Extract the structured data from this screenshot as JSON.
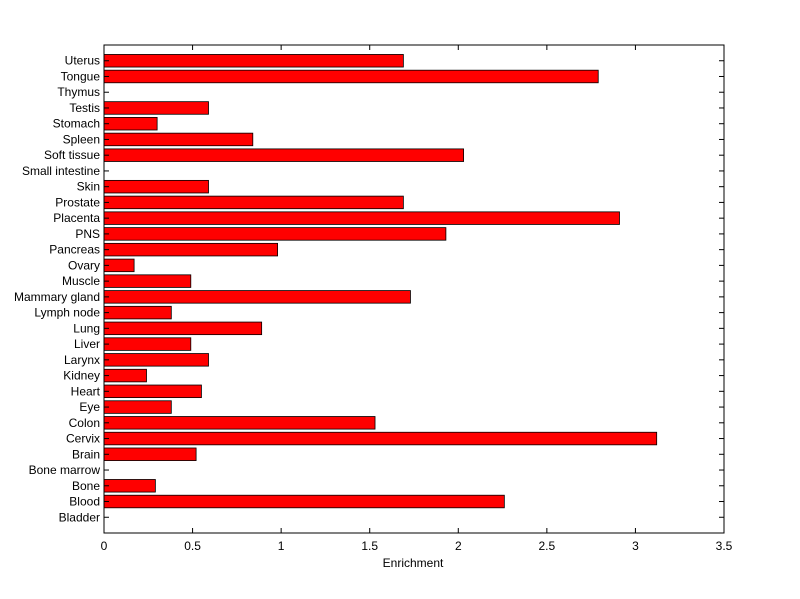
{
  "chart_data": {
    "type": "bar",
    "orientation": "horizontal",
    "xlabel": "Enrichment",
    "ylabel": "",
    "title": "",
    "xlim": [
      0,
      3.5
    ],
    "xticks": [
      "0",
      "0.5",
      "1",
      "1.5",
      "2",
      "2.5",
      "3",
      "3.5"
    ],
    "grid": false,
    "bar_color": "#ff0000",
    "categories": [
      "Bladder",
      "Blood",
      "Bone",
      "Bone marrow",
      "Brain",
      "Cervix",
      "Colon",
      "Eye",
      "Heart",
      "Kidney",
      "Larynx",
      "Liver",
      "Lung",
      "Lymph node",
      "Mammary gland",
      "Muscle",
      "Ovary",
      "Pancreas",
      "PNS",
      "Placenta",
      "Prostate",
      "Skin",
      "Small intestine",
      "Soft tissue",
      "Spleen",
      "Stomach",
      "Testis",
      "Thymus",
      "Tongue",
      "Uterus"
    ],
    "values": [
      0,
      2.26,
      0.29,
      0,
      0.52,
      3.12,
      1.53,
      0.38,
      0.55,
      0.24,
      0.59,
      0.49,
      0.89,
      0.38,
      1.73,
      0.49,
      0.17,
      0.98,
      1.93,
      2.91,
      1.69,
      0.59,
      0,
      2.03,
      0.84,
      0.3,
      0.59,
      0,
      2.79,
      1.69
    ]
  }
}
